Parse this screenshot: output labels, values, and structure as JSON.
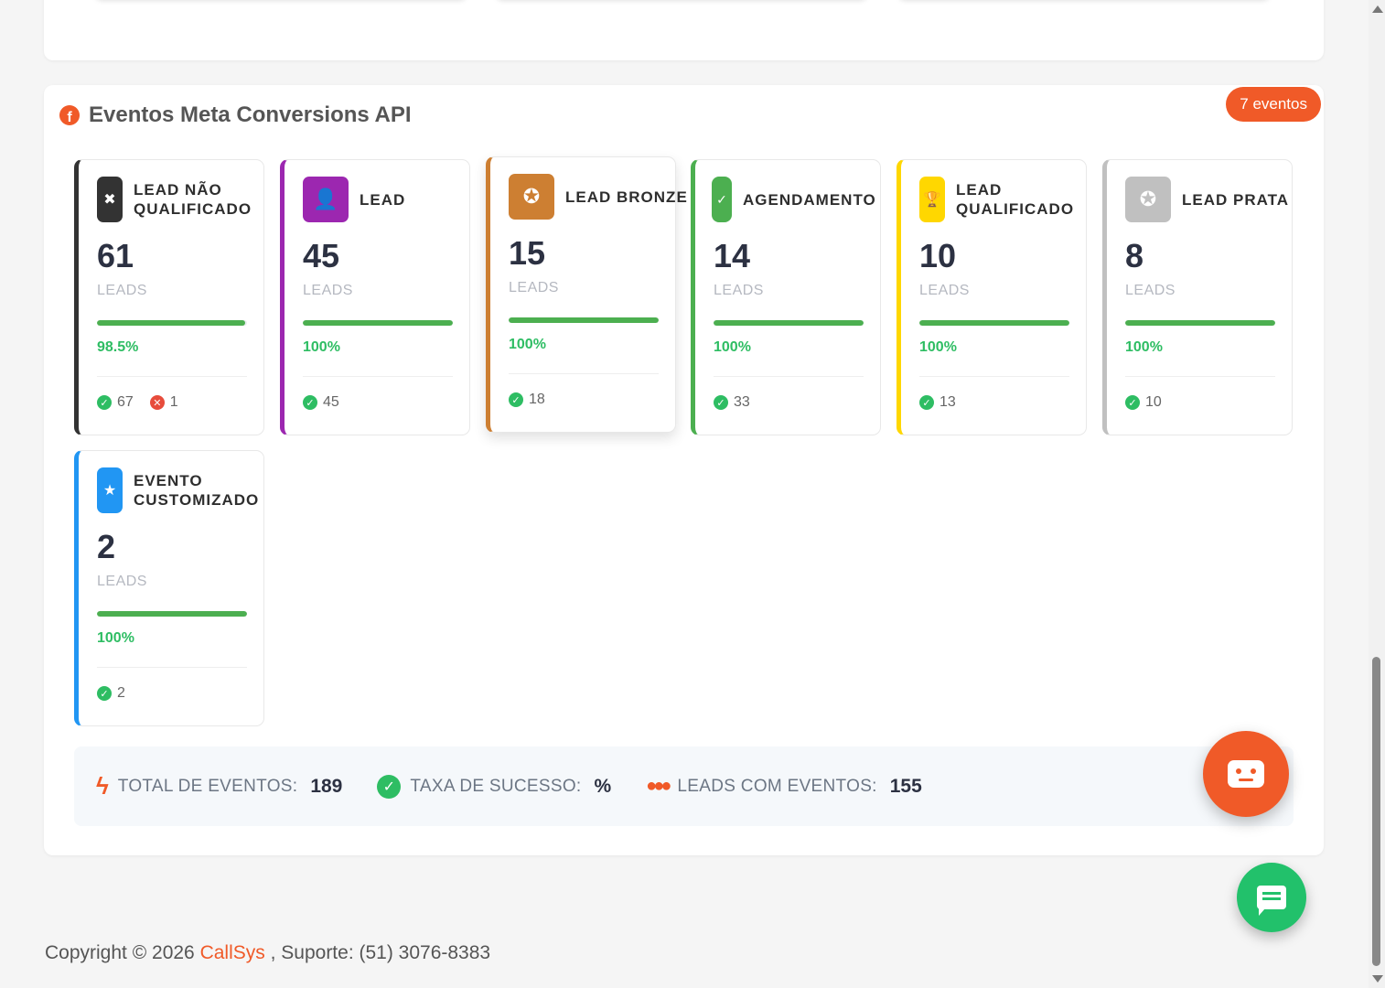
{
  "section": {
    "title": "Eventos Meta Conversions API",
    "count_badge": "7 eventos"
  },
  "events": [
    {
      "name": "LEAD NÃO QUALIFICADO",
      "value": "61",
      "unit": "LEADS",
      "success_rate": 98.5,
      "percent_label": "98.5%",
      "success_count": "67",
      "error_count": "1",
      "color": "#333333",
      "icon": "times-circle-icon"
    },
    {
      "name": "LEAD",
      "value": "45",
      "unit": "LEADS",
      "success_rate": 100,
      "percent_label": "100%",
      "success_count": "45",
      "color": "#9c27b0",
      "icon": "user-plus-icon"
    },
    {
      "name": "LEAD BRONZE",
      "value": "15",
      "unit": "LEADS",
      "success_rate": 100,
      "percent_label": "100%",
      "success_count": "18",
      "color": "#cd7f32",
      "icon": "award-icon"
    },
    {
      "name": "AGENDAMENTO",
      "value": "14",
      "unit": "LEADS",
      "success_rate": 100,
      "percent_label": "100%",
      "success_count": "33",
      "color": "#4caf50",
      "icon": "calendar-check-icon"
    },
    {
      "name": "LEAD QUALIFICADO",
      "value": "10",
      "unit": "LEADS",
      "success_rate": 100,
      "percent_label": "100%",
      "success_count": "13",
      "color": "#ffd700",
      "icon": "trophy-icon"
    },
    {
      "name": "LEAD PRATA",
      "value": "8",
      "unit": "LEADS",
      "success_rate": 100,
      "percent_label": "100%",
      "success_count": "10",
      "color": "#c0c0c0",
      "icon": "medal-icon"
    },
    {
      "name": "EVENTO CUSTOMIZADO",
      "value": "2",
      "unit": "LEADS",
      "success_rate": 100,
      "percent_label": "100%",
      "success_count": "2",
      "color": "#2196f3",
      "icon": "star-icon"
    }
  ],
  "summary": {
    "total_label": "TOTAL DE EVENTOS:",
    "total_value": "189",
    "rate_label": "TAXA DE SUCESSO:",
    "rate_value": "%",
    "leads_label": "LEADS COM EVENTOS:",
    "leads_value": "155"
  },
  "footer": {
    "prefix": "Copyright © 2026 ",
    "brand": "CallSys",
    "suffix": " , Suporte: (51) 3076-8383"
  },
  "accent_color": "#f05a28",
  "success_color": "#2ebd63"
}
